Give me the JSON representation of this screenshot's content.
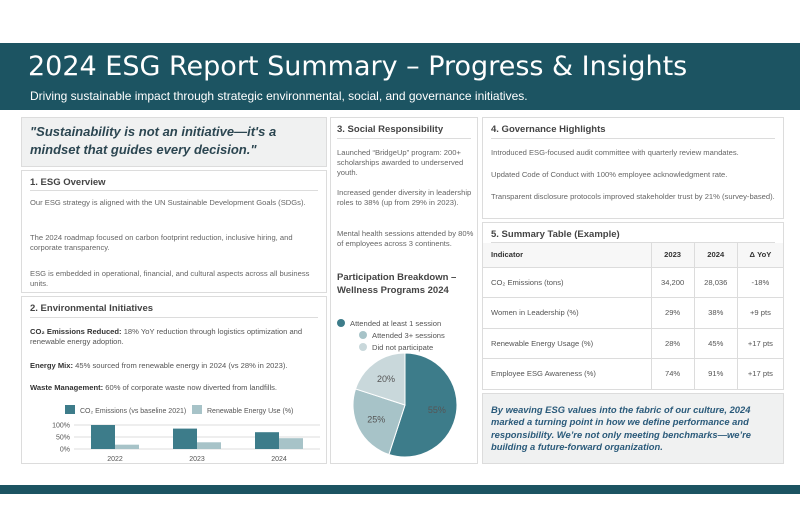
{
  "header": {
    "title": "2024 ESG Report Summary – Progress & Insights",
    "subtitle": "Driving sustainable impact through strategic environmental, social, and governance initiatives."
  },
  "quote": "\"Sustainability is not an initiative—it's a mindset that guides every decision.\"",
  "overview": {
    "title": "1. ESG Overview",
    "paragraphs": [
      "Our ESG strategy is aligned with the UN Sustainable Development Goals (SDGs).",
      "The 2024 roadmap focused on carbon footprint reduction, inclusive hiring, and corporate transparency.",
      "ESG is embedded in operational, financial, and cultural aspects across all business units."
    ]
  },
  "environmental": {
    "title": "2. Environmental Initiatives",
    "items": [
      {
        "label": "CO₂ Emissions Reduced:",
        "text": " 18% YoY reduction through logistics optimization and renewable energy adoption."
      },
      {
        "label": "Energy Mix:",
        "text": " 45% sourced from renewable energy in 2024 (vs 28% in 2023)."
      },
      {
        "label": "Waste Management:",
        "text": " 60% of corporate waste now diverted from landfills."
      }
    ]
  },
  "social": {
    "title": "3. Social Responsibility",
    "paragraphs": [
      "Launched “BridgeUp” program: 200+ scholarships awarded to underserved youth.",
      "Increased gender diversity in leadership roles to 38% (up from 29% in 2023).",
      "Mental health sessions attended by 80% of employees across 3 continents."
    ],
    "breakdown_title": "Participation Breakdown – Wellness Programs 2024"
  },
  "governance": {
    "title": "4. Governance Highlights",
    "paragraphs": [
      "Introduced ESG-focused audit committee with quarterly review mandates.",
      "Updated Code of Conduct with 100% employee acknowledgment rate.",
      "Transparent disclosure protocols improved stakeholder trust by 21% (survey-based)."
    ]
  },
  "summary": {
    "title": "5. Summary Table (Example)",
    "headers": [
      "Indicator",
      "2023",
      "2024",
      "Δ YoY"
    ],
    "rows": [
      [
        "CO₂ Emissions (tons)",
        "34,200",
        "28,036",
        "-18%"
      ],
      [
        "Women in Leadership (%)",
        "29%",
        "38%",
        "+9 pts"
      ],
      [
        "Renewable Energy Usage (%)",
        "28%",
        "45%",
        "+17 pts"
      ],
      [
        "Employee ESG Awareness (%)",
        "74%",
        "91%",
        "+17 pts"
      ]
    ]
  },
  "closing": "By weaving ESG values into the fabric of our culture, 2024 marked a turning point in how we define performance and responsibility. We’re not only meeting benchmarks—we’re building a future-forward organization.",
  "colors": {
    "brand": "#1c5462",
    "series_dark": "#3d7c8a",
    "series_mid": "#a7c3c8",
    "series_light": "#c9d8db"
  },
  "chart_data": [
    {
      "type": "bar",
      "categories": [
        "2022",
        "2023",
        "2024"
      ],
      "series": [
        {
          "name": "CO₂ Emissions (vs baseline 2021)",
          "values": [
            100,
            85,
            70
          ]
        },
        {
          "name": "Renewable Energy Use (%)",
          "values": [
            18,
            28,
            45
          ]
        }
      ],
      "yticks": [
        "100%",
        "50%",
        "0%"
      ],
      "ylim": [
        0,
        100
      ],
      "grid": true,
      "legend": "top"
    },
    {
      "type": "pie",
      "labels": [
        "Attended at least 1 session",
        "Attended 3+ sessions",
        "Did not participate"
      ],
      "values": [
        55,
        25,
        20
      ],
      "value_labels": [
        "55%",
        "25%",
        "20%"
      ],
      "legend": "top"
    }
  ]
}
